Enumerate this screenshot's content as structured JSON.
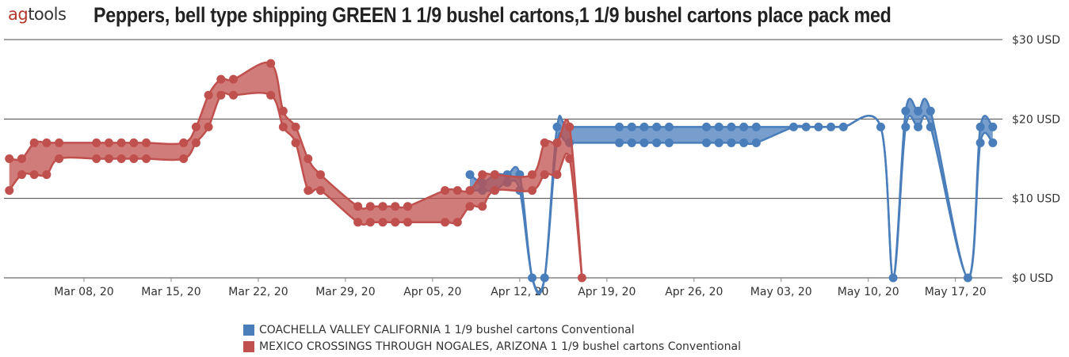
{
  "header": {
    "logo_prefix": "ag",
    "logo_suffix": "tools",
    "title": "Peppers, bell type shipping GREEN 1 1/9 bushel cartons,1 1/9 bushel cartons place pack med"
  },
  "colors": {
    "series_blue": "#4a7ebb",
    "series_red": "#c0504d",
    "grid": "#444444"
  },
  "chart_data": {
    "type": "area",
    "x_ticks": [
      "Mar 08, 20",
      "Mar 15, 20",
      "Mar 22, 20",
      "Mar 29, 20",
      "Apr 05, 20",
      "Apr 12, 20",
      "Apr 19, 20",
      "Apr 26, 20",
      "May 03, 20",
      "May 10, 20",
      "May 17, 20"
    ],
    "y_ticks": [
      "$0 USD",
      "$10 USD",
      "$20 USD",
      "$30 USD"
    ],
    "ylim": [
      0,
      30
    ],
    "grid": true,
    "legend_position": "bottom",
    "series": [
      {
        "name": "COACHELLA VALLEY CALIFORNIA  1 1/9 bushel cartons  Conventional",
        "color": "#4a7ebb",
        "points": [
          [
            "2020-04-08",
            11,
            13
          ],
          [
            "2020-04-09",
            11,
            12
          ],
          [
            "2020-04-10",
            11,
            13
          ],
          [
            "2020-04-11",
            12,
            13
          ],
          [
            "2020-04-12",
            11,
            13
          ],
          [
            "2020-04-13",
            0,
            0
          ],
          [
            "2020-04-14",
            0,
            0
          ],
          [
            "2020-04-15",
            17,
            19
          ],
          [
            "2020-04-16",
            17,
            19
          ],
          [
            "2020-04-20",
            17,
            19
          ],
          [
            "2020-04-21",
            17,
            19
          ],
          [
            "2020-04-22",
            17,
            19
          ],
          [
            "2020-04-23",
            17,
            19
          ],
          [
            "2020-04-24",
            17,
            19
          ],
          [
            "2020-04-27",
            17,
            19
          ],
          [
            "2020-04-28",
            17,
            19
          ],
          [
            "2020-04-29",
            17,
            19
          ],
          [
            "2020-04-30",
            17,
            19
          ],
          [
            "2020-05-01",
            17,
            19
          ],
          [
            "2020-05-04",
            19,
            19
          ],
          [
            "2020-05-05",
            19,
            19
          ],
          [
            "2020-05-06",
            19,
            19
          ],
          [
            "2020-05-07",
            19,
            19
          ],
          [
            "2020-05-08",
            19,
            19
          ],
          [
            "2020-05-11",
            19,
            19
          ],
          [
            "2020-05-12",
            0,
            0
          ],
          [
            "2020-05-13",
            19,
            21
          ],
          [
            "2020-05-14",
            19,
            21
          ],
          [
            "2020-05-15",
            19,
            21
          ],
          [
            "2020-05-18",
            0,
            0
          ],
          [
            "2020-05-19",
            17,
            19
          ],
          [
            "2020-05-20",
            17,
            19
          ]
        ]
      },
      {
        "name": "MEXICO CROSSINGS THROUGH NOGALES, ARIZONA  1 1/9 bushel cartons  Conventional",
        "color": "#c0504d",
        "points": [
          [
            "2020-03-02",
            11,
            15
          ],
          [
            "2020-03-03",
            13,
            15
          ],
          [
            "2020-03-04",
            13,
            17
          ],
          [
            "2020-03-05",
            13,
            17
          ],
          [
            "2020-03-06",
            15,
            17
          ],
          [
            "2020-03-09",
            15,
            17
          ],
          [
            "2020-03-10",
            15,
            17
          ],
          [
            "2020-03-11",
            15,
            17
          ],
          [
            "2020-03-12",
            15,
            17
          ],
          [
            "2020-03-13",
            15,
            17
          ],
          [
            "2020-03-16",
            15,
            17
          ],
          [
            "2020-03-17",
            17,
            19
          ],
          [
            "2020-03-18",
            19,
            23
          ],
          [
            "2020-03-19",
            23,
            25
          ],
          [
            "2020-03-20",
            23,
            25
          ],
          [
            "2020-03-23",
            23,
            27
          ],
          [
            "2020-03-24",
            19,
            21
          ],
          [
            "2020-03-25",
            17,
            19
          ],
          [
            "2020-03-26",
            11,
            15
          ],
          [
            "2020-03-27",
            11,
            13
          ],
          [
            "2020-03-30",
            7,
            9
          ],
          [
            "2020-03-31",
            7,
            9
          ],
          [
            "2020-04-01",
            7,
            9
          ],
          [
            "2020-04-02",
            7,
            9
          ],
          [
            "2020-04-03",
            7,
            9
          ],
          [
            "2020-04-06",
            7,
            11
          ],
          [
            "2020-04-07",
            7,
            11
          ],
          [
            "2020-04-08",
            9,
            11
          ],
          [
            "2020-04-09",
            9,
            13
          ],
          [
            "2020-04-10",
            11,
            13
          ],
          [
            "2020-04-13",
            11,
            13
          ],
          [
            "2020-04-14",
            13,
            17
          ],
          [
            "2020-04-15",
            13,
            17
          ],
          [
            "2020-04-16",
            15,
            19
          ],
          [
            "2020-04-17",
            0,
            0
          ]
        ]
      }
    ]
  },
  "legend": [
    {
      "label": "COACHELLA VALLEY CALIFORNIA  1 1/9 bushel cartons  Conventional",
      "color": "#4a7ebb"
    },
    {
      "label": "MEXICO CROSSINGS THROUGH NOGALES, ARIZONA  1 1/9 bushel cartons  Conventional",
      "color": "#c0504d"
    }
  ]
}
